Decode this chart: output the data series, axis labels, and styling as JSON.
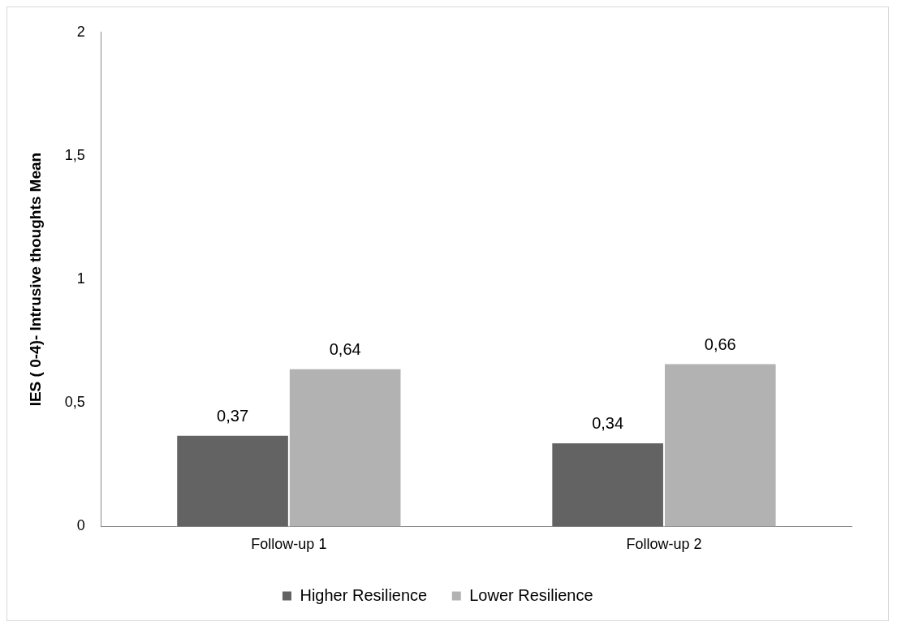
{
  "chart_data": {
    "type": "bar",
    "ylabel": "IES ( 0-4)- Intrusive thoughts Mean",
    "categories": [
      "Follow-up 1",
      "Follow-up 2"
    ],
    "series": [
      {
        "name": "Higher Resilience",
        "color": "#636363",
        "values": [
          0.37,
          0.34
        ],
        "value_labels": [
          "0,37",
          "0,34"
        ]
      },
      {
        "name": "Lower Resilience",
        "color": "#b2b2b2",
        "values": [
          0.64,
          0.66
        ],
        "value_labels": [
          "0,64",
          "0,66"
        ]
      }
    ],
    "ylim": [
      0,
      2
    ],
    "yticks": [
      0,
      {
        "value": 0.5,
        "label": "0,5"
      },
      1,
      {
        "value": 1.5,
        "label": "1,5"
      },
      2
    ],
    "grid": false,
    "legend": "bottom"
  }
}
